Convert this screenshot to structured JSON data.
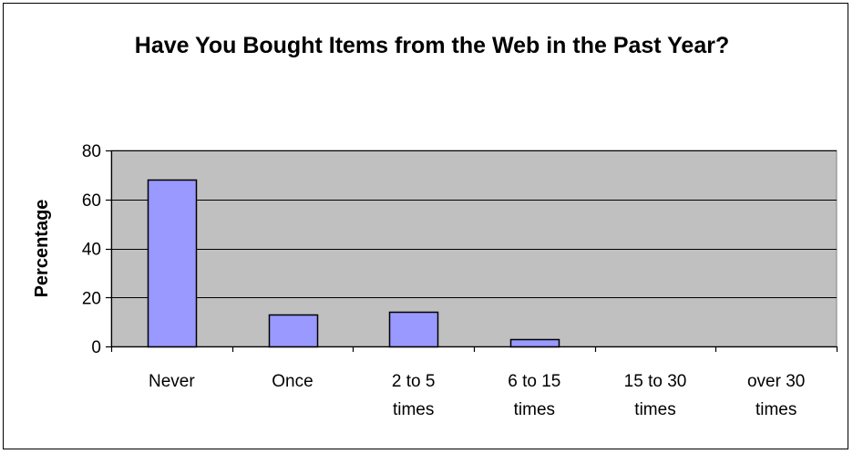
{
  "chart_data": {
    "type": "bar",
    "title": "Have You Bought Items from the Web in the Past Year?",
    "xlabel": "",
    "ylabel": "Percentage",
    "categories": [
      [
        "Never"
      ],
      [
        "Once"
      ],
      [
        "2 to 5",
        "times"
      ],
      [
        "6 to 15",
        "times"
      ],
      [
        "15 to 30",
        "times"
      ],
      [
        "over 30",
        "times"
      ]
    ],
    "values": [
      68,
      13,
      14,
      3,
      0,
      0
    ],
    "ylim": [
      0,
      80
    ],
    "yticks": [
      0,
      20,
      40,
      60,
      80
    ],
    "grid": true,
    "legend": "none",
    "colors": {
      "bar_fill": "#9999ff",
      "bar_stroke": "#000000",
      "plot_background": "#c0c0c0",
      "gridline": "#000000"
    }
  }
}
